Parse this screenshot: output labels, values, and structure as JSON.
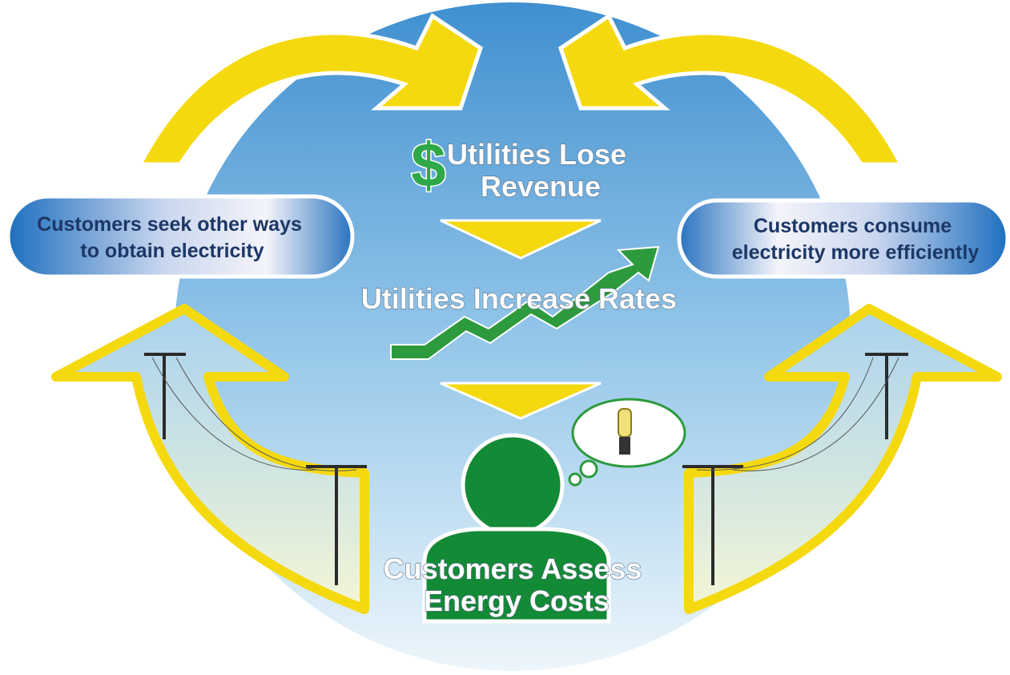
{
  "symbol": "$",
  "nodes": [
    {
      "lines": [
        "Utilities Lose",
        "Revenue"
      ]
    },
    {
      "lines": [
        "Utilities Increase Rates"
      ]
    },
    {
      "lines": [
        "Customers Assess",
        "Energy Costs"
      ]
    },
    {
      "lines": [
        "Customers seek other ways",
        "to obtain electricity"
      ]
    },
    {
      "lines": [
        "Customers consume",
        "electricity more efficiently"
      ]
    }
  ]
}
